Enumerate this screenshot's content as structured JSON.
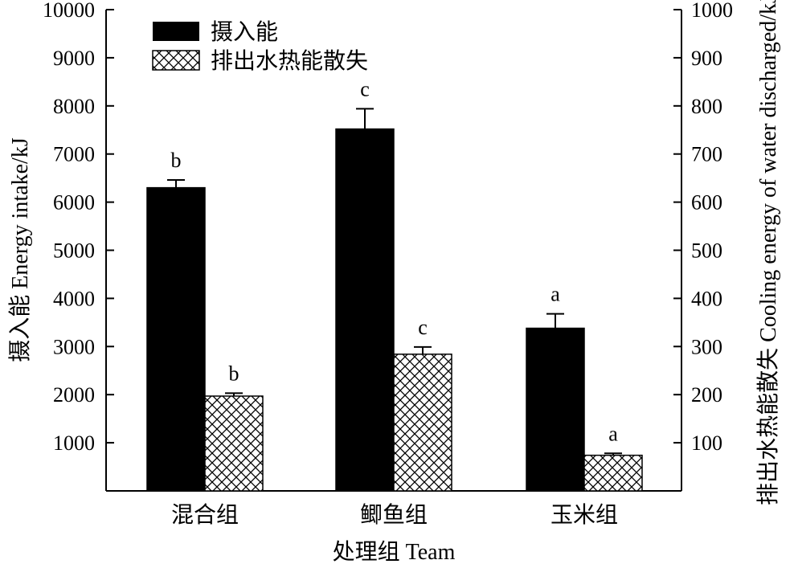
{
  "chart_data": {
    "type": "bar",
    "xlabel": "处理组 Team",
    "ylabel_left": "摄入能  Energy intake/kJ",
    "ylabel_right": "排出水热能散失 Cooling energy of water discharged/kJ",
    "categories": [
      "混合组",
      "鲫鱼组",
      "玉米组"
    ],
    "ylim_left": [
      0,
      10000
    ],
    "ylim_right": [
      0,
      1000
    ],
    "yticks_left": [
      1000,
      2000,
      3000,
      4000,
      5000,
      6000,
      7000,
      8000,
      9000,
      10000
    ],
    "yticks_right": [
      100,
      200,
      300,
      400,
      500,
      600,
      700,
      800,
      900,
      1000
    ],
    "legend_position": "top-left",
    "grid": false,
    "series": [
      {
        "name": "摄入能",
        "axis": "left",
        "fill": "#000000",
        "pattern": "solid",
        "values": [
          6300,
          7520,
          3380
        ],
        "errors": [
          160,
          420,
          300
        ],
        "labels": [
          "b",
          "c",
          "a"
        ]
      },
      {
        "name": "排出水热能散失",
        "axis": "right",
        "fill": "#ffffff",
        "pattern": "crosshatch",
        "values": [
          197,
          284,
          74
        ],
        "errors": [
          6,
          15,
          4
        ],
        "labels": [
          "b",
          "c",
          "a"
        ]
      }
    ]
  }
}
